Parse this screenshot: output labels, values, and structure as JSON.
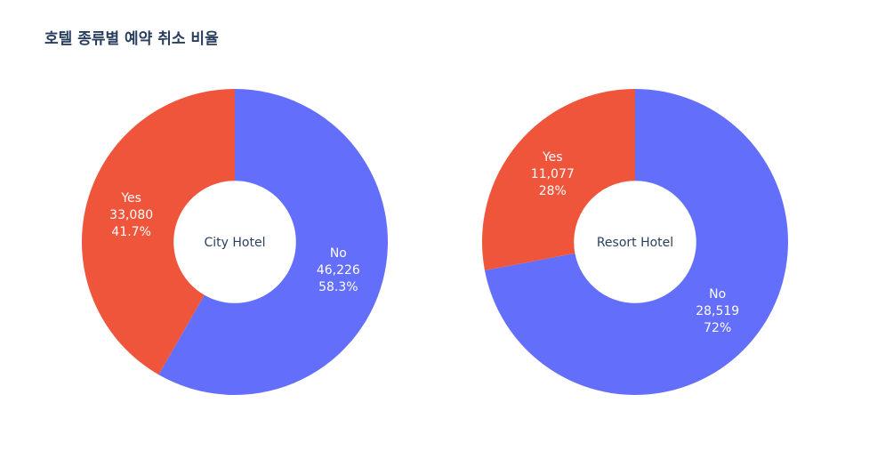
{
  "chart_data": {
    "type": "pie",
    "title": "호텔 종류별 예약 취소 비율",
    "colors": {
      "No": "#636efa",
      "Yes": "#ef553b"
    },
    "charts": [
      {
        "center_label": "City Hotel",
        "slices": [
          {
            "label": "No",
            "value": 46226,
            "value_text": "46,226",
            "percent_text": "58.3%"
          },
          {
            "label": "Yes",
            "value": 33080,
            "value_text": "33,080",
            "percent_text": "41.7%"
          }
        ]
      },
      {
        "center_label": "Resort Hotel",
        "slices": [
          {
            "label": "No",
            "value": 28519,
            "value_text": "28,519",
            "percent_text": "72%"
          },
          {
            "label": "Yes",
            "value": 11077,
            "value_text": "11,077",
            "percent_text": "28%"
          }
        ]
      }
    ]
  }
}
